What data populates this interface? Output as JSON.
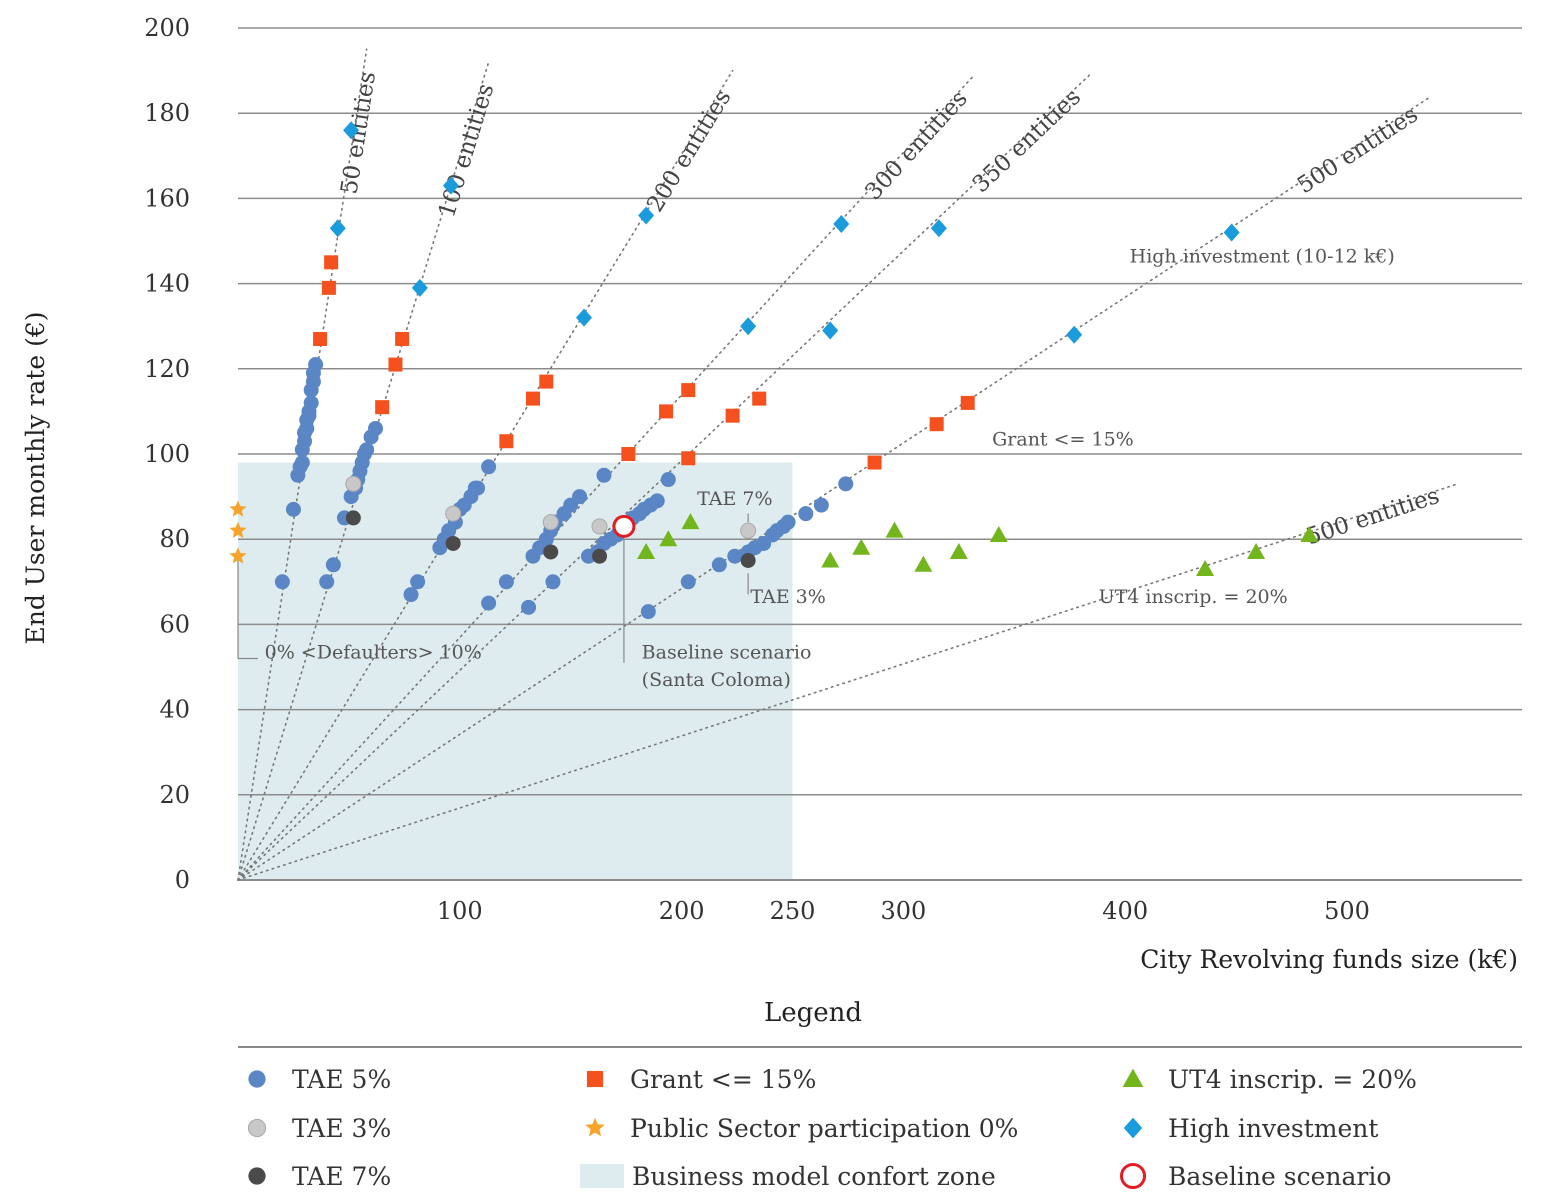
{
  "chart_data": {
    "type": "scatter",
    "title": "",
    "xlabel": "City Revolving funds size (k€)",
    "ylabel": "End User monthly rate (€)",
    "xlim": [
      0,
      580
    ],
    "ylim": [
      0,
      200
    ],
    "x_ticks": [
      100,
      200,
      250,
      300,
      400,
      500
    ],
    "y_ticks": [
      0,
      20,
      40,
      60,
      80,
      100,
      120,
      140,
      160,
      180,
      200
    ],
    "grid": "horizontal",
    "colors": {
      "tae5": "#5b86c5",
      "tae3": "#c8c8c8",
      "tae7": "#4a4a4a",
      "grant": "#f4511e",
      "public": "#f7a42c",
      "ut4": "#72b51c",
      "high": "#1a9bdc",
      "baseline": "#e31b23",
      "zone": "#deecef",
      "grid": "#8c8c8c",
      "guide": "#777777"
    },
    "comfort_zone": {
      "x": [
        0,
        250
      ],
      "y": [
        0,
        98
      ]
    },
    "guide_lines": [
      {
        "label": "50 entities",
        "x_end": 58,
        "y_end": 195
      },
      {
        "label": "100 entities",
        "x_end": 113,
        "y_end": 192
      },
      {
        "label": "200 entities",
        "x_end": 223,
        "y_end": 190
      },
      {
        "label": "300 entities",
        "x_end": 332,
        "y_end": 189
      },
      {
        "label": "350 entities",
        "x_end": 384,
        "y_end": 189
      },
      {
        "label": "500 entities",
        "x_end": 538,
        "y_end": 184
      },
      {
        "label": "500 entities",
        "x_end": 550,
        "y_end": 93
      }
    ],
    "series": [
      {
        "name": "TAE 5%",
        "marker": "circle",
        "points": [
          [
            20,
            70
          ],
          [
            25,
            87
          ],
          [
            27,
            95
          ],
          [
            28,
            97
          ],
          [
            29,
            98
          ],
          [
            29,
            101
          ],
          [
            30,
            103
          ],
          [
            30,
            105
          ],
          [
            31,
            106
          ],
          [
            31,
            108
          ],
          [
            32,
            109
          ],
          [
            32,
            110
          ],
          [
            33,
            112
          ],
          [
            33,
            115
          ],
          [
            34,
            117
          ],
          [
            34,
            119
          ],
          [
            35,
            121
          ],
          [
            40,
            70
          ],
          [
            43,
            74
          ],
          [
            48,
            85
          ],
          [
            51,
            90
          ],
          [
            53,
            92
          ],
          [
            54,
            94
          ],
          [
            55,
            96
          ],
          [
            56,
            98
          ],
          [
            57,
            100
          ],
          [
            58,
            101
          ],
          [
            60,
            104
          ],
          [
            62,
            106
          ],
          [
            78,
            67
          ],
          [
            81,
            70
          ],
          [
            91,
            78
          ],
          [
            93,
            80
          ],
          [
            95,
            82
          ],
          [
            98,
            84
          ],
          [
            100,
            87
          ],
          [
            102,
            88
          ],
          [
            105,
            90
          ],
          [
            107,
            92
          ],
          [
            108,
            92
          ],
          [
            113,
            97
          ],
          [
            113,
            65
          ],
          [
            121,
            70
          ],
          [
            131,
            64
          ],
          [
            133,
            76
          ],
          [
            136,
            78
          ],
          [
            139,
            80
          ],
          [
            141,
            82
          ],
          [
            143,
            84
          ],
          [
            147,
            86
          ],
          [
            150,
            88
          ],
          [
            154,
            90
          ],
          [
            142,
            70
          ],
          [
            165,
            95
          ],
          [
            158,
            76
          ],
          [
            162,
            77
          ],
          [
            165,
            79
          ],
          [
            168,
            80
          ],
          [
            171,
            81
          ],
          [
            173,
            82
          ],
          [
            176,
            84
          ],
          [
            178,
            85
          ],
          [
            181,
            86
          ],
          [
            183,
            87
          ],
          [
            186,
            88
          ],
          [
            189,
            89
          ],
          [
            194,
            94
          ],
          [
            185,
            63
          ],
          [
            203,
            70
          ],
          [
            217,
            74
          ],
          [
            224,
            76
          ],
          [
            230,
            77
          ],
          [
            233,
            78
          ],
          [
            237,
            79
          ],
          [
            241,
            81
          ],
          [
            243,
            82
          ],
          [
            246,
            83
          ],
          [
            248,
            84
          ],
          [
            256,
            86
          ],
          [
            263,
            88
          ],
          [
            274,
            93
          ]
        ]
      },
      {
        "name": "TAE 3%",
        "marker": "circle",
        "points": [
          [
            52,
            93
          ],
          [
            97,
            86
          ],
          [
            141,
            84
          ],
          [
            163,
            83
          ],
          [
            230,
            82
          ]
        ]
      },
      {
        "name": "TAE 7%",
        "marker": "circle",
        "points": [
          [
            52,
            85
          ],
          [
            97,
            79
          ],
          [
            141,
            77
          ],
          [
            163,
            76
          ],
          [
            230,
            75
          ]
        ]
      },
      {
        "name": "Grant <= 15%",
        "marker": "square",
        "points": [
          [
            37,
            127
          ],
          [
            41,
            139
          ],
          [
            42,
            145
          ],
          [
            65,
            111
          ],
          [
            71,
            121
          ],
          [
            74,
            127
          ],
          [
            121,
            103
          ],
          [
            133,
            113
          ],
          [
            139,
            117
          ],
          [
            176,
            100
          ],
          [
            193,
            110
          ],
          [
            203,
            115
          ],
          [
            203,
            99
          ],
          [
            223,
            109
          ],
          [
            235,
            113
          ],
          [
            287,
            98
          ],
          [
            315,
            107
          ],
          [
            329,
            112
          ]
        ]
      },
      {
        "name": "Public Sector participation 0%",
        "marker": "star",
        "points": [
          [
            0,
            87
          ],
          [
            0,
            82
          ],
          [
            0,
            76
          ]
        ]
      },
      {
        "name": "UT4 inscrip. = 20%",
        "marker": "triangle",
        "points": [
          [
            184,
            77
          ],
          [
            194,
            80
          ],
          [
            204,
            84
          ],
          [
            267,
            75
          ],
          [
            281,
            78
          ],
          [
            296,
            82
          ],
          [
            309,
            74
          ],
          [
            325,
            77
          ],
          [
            343,
            81
          ],
          [
            436,
            73
          ],
          [
            459,
            77
          ],
          [
            483,
            81
          ]
        ]
      },
      {
        "name": "High investment",
        "marker": "diamond",
        "points": [
          [
            51,
            176
          ],
          [
            45,
            153
          ],
          [
            96,
            163
          ],
          [
            82,
            139
          ],
          [
            184,
            156
          ],
          [
            156,
            132
          ],
          [
            230,
            130
          ],
          [
            267,
            129
          ],
          [
            272,
            154
          ],
          [
            316,
            153
          ],
          [
            377,
            128
          ],
          [
            448,
            152
          ]
        ]
      },
      {
        "name": "Baseline scenario",
        "marker": "ring",
        "points": [
          [
            174,
            83
          ]
        ]
      }
    ],
    "annotations": [
      {
        "text": "TAE 7%",
        "x": 207,
        "y": 88
      },
      {
        "text": "TAE 3%",
        "x": 231,
        "y": 65
      },
      {
        "text": "Grant <= 15%",
        "x": 340,
        "y": 102
      },
      {
        "text": "High investment  (10-12 k€)",
        "x": 402,
        "y": 145
      },
      {
        "text": "UT4 inscrip. = 20%",
        "x": 388,
        "y": 65
      },
      {
        "text": "0% <Defaulters> 10%",
        "x": 12,
        "y": 52
      },
      {
        "text": "Baseline scenario",
        "x": 182,
        "y": 52
      },
      {
        "text": "(Santa Coloma)",
        "x": 182,
        "y": 45.5
      }
    ]
  },
  "legend": {
    "title": "Legend",
    "items": [
      {
        "label": "TAE 5%",
        "marker": "circle",
        "color": "#5b86c5"
      },
      {
        "label": "TAE 3%",
        "marker": "circle",
        "color": "#c8c8c8"
      },
      {
        "label": "TAE 7%",
        "marker": "circle",
        "color": "#4a4a4a"
      },
      {
        "label": "Grant <= 15%",
        "marker": "square",
        "color": "#f4511e"
      },
      {
        "label": "Public Sector participation 0%",
        "marker": "star",
        "color": "#f7a42c"
      },
      {
        "label": "Business model confort zone",
        "marker": "rect",
        "color": "#deecef"
      },
      {
        "label": "UT4 inscrip. = 20%",
        "marker": "triangle",
        "color": "#72b51c"
      },
      {
        "label": "High investment",
        "marker": "diamond",
        "color": "#1a9bdc"
      },
      {
        "label": "Baseline scenario",
        "marker": "ring",
        "color": "#e31b23"
      }
    ]
  }
}
